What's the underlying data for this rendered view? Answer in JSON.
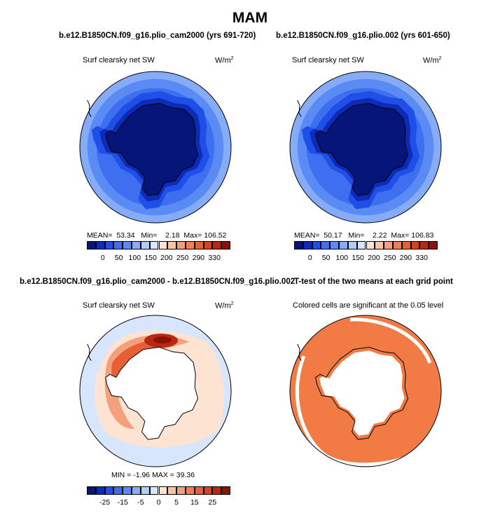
{
  "title": "MAM",
  "panels": {
    "p1": {
      "case": "b.e12.B1850CN.f09_g16.plio_cam2000 (yrs 691-720)",
      "var": "Surf clearsky net SW",
      "units_main": "W/m",
      "units_exp": "2",
      "stats": {
        "mean_label": "MEAN=",
        "mean": "53.34",
        "min_label": "Min=",
        "min": "2.18",
        "max_label": "Max=",
        "max": "106.52"
      }
    },
    "p2": {
      "case": "b.e12.B1850CN.f09_g16.plio.002 (yrs 601-650)",
      "var": "Surf clearsky net SW",
      "units_main": "W/m",
      "units_exp": "2",
      "stats": {
        "mean_label": "MEAN=",
        "mean": "50.17",
        "min_label": "Min=",
        "min": "2.22",
        "max_label": "Max=",
        "max": "106.83"
      }
    },
    "p3": {
      "case": "b.e12.B1850CN.f09_g16.plio_cam2000 - b.e12.B1850CN.f09_g16.plio.002",
      "var": "Surf clearsky net SW",
      "units_main": "W/m",
      "units_exp": "2",
      "stats": "MIN = -1.96  MAX = 39.36"
    },
    "p4": {
      "case": "T-test of the two means at each grid point",
      "var": "Colored cells are significant at the 0.05 level"
    }
  },
  "colors": {
    "blues": [
      "#06157a",
      "#0c2bb8",
      "#1f4fe6",
      "#3d6ff0",
      "#5a8af4",
      "#86acf7",
      "#b2cdfa",
      "#d7e6fc"
    ],
    "reds": [
      "#fde4d2",
      "#f9c3a5",
      "#f4a07c",
      "#ef7f56",
      "#e85f35",
      "#d64320",
      "#b82914",
      "#8e1108"
    ],
    "map_abs": {
      "deep": "#06157a",
      "ring1": "#0c2bb8",
      "ring2": "#1f4fe6",
      "ring3": "#3d6ff0",
      "ring4": "#5a8af4",
      "rim": "#86acf7"
    },
    "map_diff": {
      "bg": "#d7e6fc",
      "warm1": "#fde4d2",
      "warm2": "#f4a07c",
      "warm3": "#e85f35",
      "warm4": "#b82914",
      "warm5": "#8e1108"
    },
    "ttest": "#f27a44"
  },
  "chart_data": [
    {
      "type": "heatmap",
      "title": "b.e12.B1850CN.f09_g16.plio_cam2000 (yrs 691-720)",
      "variable": "Surf clearsky net SW",
      "units": "W/m2",
      "projection": "south polar stereographic",
      "mean": 53.34,
      "min": 2.18,
      "max": 106.52,
      "colorbar_ticks": [
        "0",
        "50",
        "100",
        "150",
        "200",
        "250",
        "290",
        "330"
      ]
    },
    {
      "type": "heatmap",
      "title": "b.e12.B1850CN.f09_g16.plio.002 (yrs 601-650)",
      "variable": "Surf clearsky net SW",
      "units": "W/m2",
      "projection": "south polar stereographic",
      "mean": 50.17,
      "min": 2.22,
      "max": 106.83,
      "colorbar_ticks": [
        "0",
        "50",
        "100",
        "150",
        "200",
        "250",
        "290",
        "330"
      ]
    },
    {
      "type": "heatmap",
      "title": "b.e12.B1850CN.f09_g16.plio_cam2000 - b.e12.B1850CN.f09_g16.plio.002",
      "variable": "Surf clearsky net SW",
      "units": "W/m2",
      "projection": "south polar stereographic",
      "min": -1.96,
      "max": 39.36,
      "colorbar_ticks": [
        "-25",
        "-15",
        "-5",
        "0",
        "5",
        "15",
        "25"
      ]
    },
    {
      "type": "heatmap",
      "title": "T-test of the two means at each grid point",
      "subtitle": "Colored cells are significant at the 0.05 level",
      "projection": "south polar stereographic"
    }
  ]
}
